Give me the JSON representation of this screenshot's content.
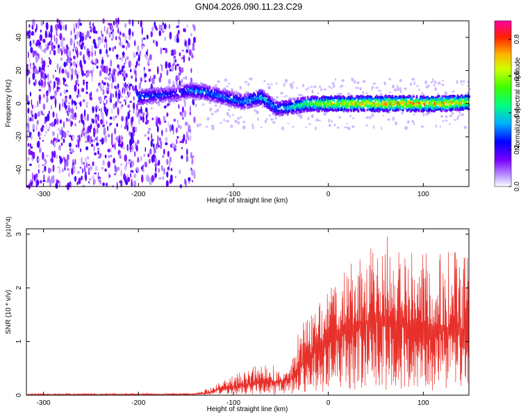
{
  "title": "GN04.2026.090.11.23.C29",
  "chart_data": [
    {
      "type": "heatmap",
      "xlabel": "Height of straight line (km)",
      "ylabel": "Frequency (Hz)",
      "xlim": [
        -318,
        148
      ],
      "ylim": [
        -50,
        50
      ],
      "x_ticks": [
        -300,
        -200,
        -100,
        0,
        100
      ],
      "y_ticks": [
        -40,
        -20,
        0,
        20,
        40
      ],
      "colorbar": {
        "label": "Normalized spectral amplitude",
        "range": [
          0.0,
          0.9
        ],
        "ticks": [
          "0.0",
          "0.2",
          "0.4",
          "0.6",
          "0.8"
        ],
        "tick_values": [
          0.0,
          0.2,
          0.4,
          0.6,
          0.8
        ]
      },
      "ridge": [
        {
          "x": -200,
          "freq": 4,
          "amp": 0.35
        },
        {
          "x": -180,
          "freq": 5,
          "amp": 0.3
        },
        {
          "x": -160,
          "freq": 6,
          "amp": 0.25
        },
        {
          "x": -145,
          "freq": 8,
          "amp": 0.35
        },
        {
          "x": -130,
          "freq": 7,
          "amp": 0.35
        },
        {
          "x": -110,
          "freq": 4,
          "amp": 0.35
        },
        {
          "x": -90,
          "freq": 1,
          "amp": 0.35
        },
        {
          "x": -70,
          "freq": 4,
          "amp": 0.45
        },
        {
          "x": -55,
          "freq": -3,
          "amp": 0.35
        },
        {
          "x": -40,
          "freq": -2,
          "amp": 0.45
        },
        {
          "x": -20,
          "freq": 0,
          "amp": 0.55
        },
        {
          "x": 0,
          "freq": 0,
          "amp": 0.7
        },
        {
          "x": 40,
          "freq": 0,
          "amp": 0.75
        },
        {
          "x": 80,
          "freq": 0,
          "amp": 0.8
        },
        {
          "x": 120,
          "freq": 0,
          "amp": 0.8
        },
        {
          "x": 148,
          "freq": 1,
          "amp": 0.75
        }
      ]
    },
    {
      "type": "line",
      "xlabel": "Height of straight line (km)",
      "ylabel": "SNR (10 * v/v)",
      "yscale_label": "(x10^4)",
      "xlim": [
        -318,
        148
      ],
      "ylim": [
        0,
        3.1
      ],
      "x_ticks": [
        -300,
        -200,
        -100,
        0,
        100
      ],
      "y_ticks": [
        0,
        1,
        2,
        3
      ],
      "color": "#e8302a",
      "envelope": [
        {
          "x": -318,
          "mean": 0.01,
          "max": 0.03
        },
        {
          "x": -140,
          "mean": 0.02,
          "max": 0.04
        },
        {
          "x": -125,
          "mean": 0.05,
          "max": 0.14
        },
        {
          "x": -110,
          "mean": 0.15,
          "max": 0.3
        },
        {
          "x": -90,
          "mean": 0.18,
          "max": 0.45
        },
        {
          "x": -70,
          "mean": 0.28,
          "max": 0.6
        },
        {
          "x": -55,
          "mean": 0.25,
          "max": 0.55
        },
        {
          "x": -40,
          "mean": 0.3,
          "max": 0.55
        },
        {
          "x": -30,
          "mean": 0.55,
          "max": 1.3
        },
        {
          "x": -20,
          "mean": 0.75,
          "max": 1.6
        },
        {
          "x": -5,
          "mean": 1.0,
          "max": 1.9
        },
        {
          "x": 10,
          "mean": 1.2,
          "max": 2.2
        },
        {
          "x": 30,
          "mean": 1.35,
          "max": 2.6
        },
        {
          "x": 55,
          "mean": 1.45,
          "max": 3.05
        },
        {
          "x": 80,
          "mean": 1.35,
          "max": 2.8
        },
        {
          "x": 110,
          "mean": 1.3,
          "max": 2.7
        },
        {
          "x": 148,
          "mean": 1.2,
          "max": 2.65
        }
      ]
    }
  ]
}
